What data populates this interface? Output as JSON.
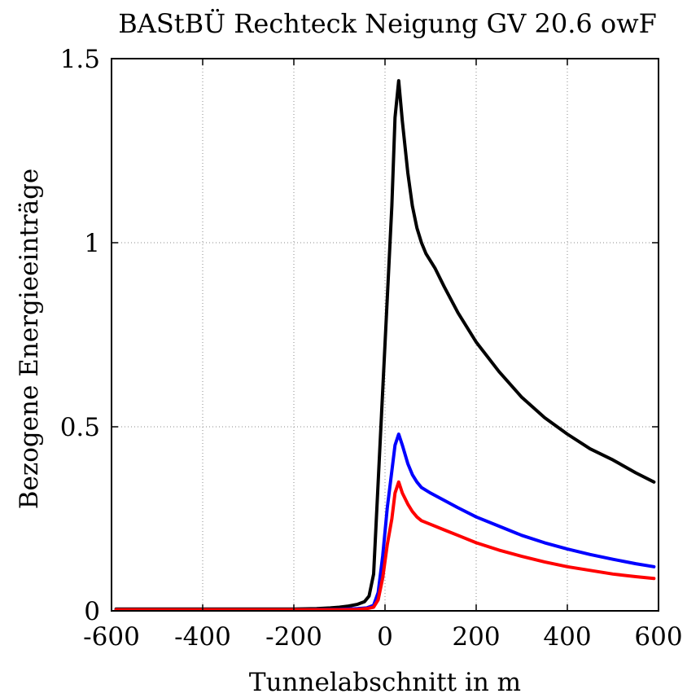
{
  "chart_data": {
    "type": "line",
    "title": "BAStBÜ Rechteck Neigung GV 20.6 owF",
    "xlabel": "Tunnelabschnitt in m",
    "ylabel": "Bezogene Energieeinträge",
    "xlim": [
      -600,
      600
    ],
    "ylim": [
      0,
      1.5
    ],
    "xticks": [
      -600,
      -400,
      -200,
      0,
      200,
      400,
      600
    ],
    "xtick_labels": [
      "-600",
      "-400",
      "-200",
      "0",
      "200",
      "400",
      "600"
    ],
    "yticks": [
      0,
      0.5,
      1,
      1.5
    ],
    "ytick_labels": [
      "0",
      "0.5",
      "1",
      "1.5"
    ],
    "grid": true,
    "legend": "none",
    "series": [
      {
        "color": "#000000",
        "points": [
          [
            -590,
            0.005
          ],
          [
            -400,
            0.005
          ],
          [
            -200,
            0.005
          ],
          [
            -150,
            0.006
          ],
          [
            -120,
            0.008
          ],
          [
            -100,
            0.01
          ],
          [
            -80,
            0.013
          ],
          [
            -60,
            0.018
          ],
          [
            -45,
            0.025
          ],
          [
            -35,
            0.04
          ],
          [
            -25,
            0.1
          ],
          [
            -15,
            0.35
          ],
          [
            -5,
            0.6
          ],
          [
            5,
            0.85
          ],
          [
            15,
            1.1
          ],
          [
            22,
            1.34
          ],
          [
            30,
            1.44
          ],
          [
            38,
            1.33
          ],
          [
            50,
            1.19
          ],
          [
            60,
            1.1
          ],
          [
            70,
            1.04
          ],
          [
            80,
            1.0
          ],
          [
            90,
            0.97
          ],
          [
            110,
            0.93
          ],
          [
            130,
            0.88
          ],
          [
            160,
            0.81
          ],
          [
            200,
            0.73
          ],
          [
            250,
            0.65
          ],
          [
            300,
            0.58
          ],
          [
            350,
            0.525
          ],
          [
            400,
            0.48
          ],
          [
            450,
            0.44
          ],
          [
            500,
            0.41
          ],
          [
            550,
            0.375
          ],
          [
            590,
            0.35
          ]
        ]
      },
      {
        "color": "#0000ff",
        "points": [
          [
            -590,
            0.003
          ],
          [
            -400,
            0.003
          ],
          [
            -200,
            0.003
          ],
          [
            -100,
            0.004
          ],
          [
            -60,
            0.006
          ],
          [
            -40,
            0.008
          ],
          [
            -25,
            0.015
          ],
          [
            -15,
            0.05
          ],
          [
            -5,
            0.15
          ],
          [
            5,
            0.28
          ],
          [
            15,
            0.38
          ],
          [
            22,
            0.45
          ],
          [
            30,
            0.48
          ],
          [
            38,
            0.45
          ],
          [
            50,
            0.4
          ],
          [
            60,
            0.37
          ],
          [
            70,
            0.35
          ],
          [
            80,
            0.335
          ],
          [
            100,
            0.32
          ],
          [
            130,
            0.3
          ],
          [
            160,
            0.28
          ],
          [
            200,
            0.255
          ],
          [
            250,
            0.23
          ],
          [
            300,
            0.205
          ],
          [
            350,
            0.185
          ],
          [
            400,
            0.168
          ],
          [
            450,
            0.153
          ],
          [
            500,
            0.14
          ],
          [
            550,
            0.128
          ],
          [
            590,
            0.12
          ]
        ]
      },
      {
        "color": "#ff0000",
        "points": [
          [
            -590,
            0.003
          ],
          [
            -400,
            0.003
          ],
          [
            -200,
            0.003
          ],
          [
            -100,
            0.003
          ],
          [
            -60,
            0.004
          ],
          [
            -40,
            0.006
          ],
          [
            -25,
            0.01
          ],
          [
            -15,
            0.03
          ],
          [
            -5,
            0.09
          ],
          [
            5,
            0.18
          ],
          [
            15,
            0.25
          ],
          [
            22,
            0.32
          ],
          [
            30,
            0.35
          ],
          [
            38,
            0.32
          ],
          [
            50,
            0.29
          ],
          [
            60,
            0.27
          ],
          [
            70,
            0.255
          ],
          [
            80,
            0.245
          ],
          [
            100,
            0.235
          ],
          [
            130,
            0.22
          ],
          [
            160,
            0.205
          ],
          [
            200,
            0.185
          ],
          [
            250,
            0.165
          ],
          [
            300,
            0.148
          ],
          [
            350,
            0.133
          ],
          [
            400,
            0.12
          ],
          [
            450,
            0.11
          ],
          [
            500,
            0.1
          ],
          [
            550,
            0.093
          ],
          [
            590,
            0.088
          ]
        ]
      }
    ]
  }
}
